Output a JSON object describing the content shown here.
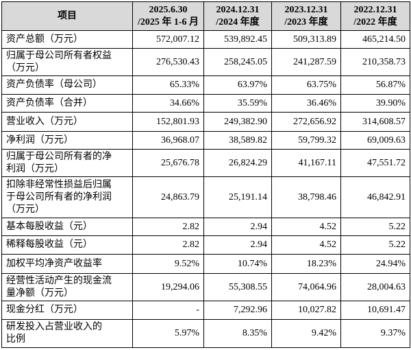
{
  "header": [
    [
      "项目"
    ],
    [
      "2025.6.30",
      "/2025 年 1-6 月"
    ],
    [
      "2024.12.31",
      "/2024 年度"
    ],
    [
      "2023.12.31",
      "/2023 年度"
    ],
    [
      "2022.12.31",
      "/2022 年度"
    ]
  ],
  "rows": [
    {
      "label": [
        "资产总额（万元）"
      ],
      "values": [
        "572,007.12",
        "539,892.45",
        "509,313.89",
        "465,214.50"
      ]
    },
    {
      "label": [
        "归属于母公司所有者权益",
        "（万元）"
      ],
      "values": [
        "276,530.43",
        "258,245.05",
        "241,287.59",
        "210,358.73"
      ]
    },
    {
      "label": [
        "资产负债率（母公司）"
      ],
      "values": [
        "65.33%",
        "63.97%",
        "63.75%",
        "56.87%"
      ]
    },
    {
      "label": [
        "资产负债率（合并）"
      ],
      "values": [
        "34.66%",
        "35.59%",
        "36.46%",
        "39.90%"
      ]
    },
    {
      "label": [
        "营业收入（万元）"
      ],
      "values": [
        "152,801.93",
        "249,382.90",
        "272,656.92",
        "314,608.57"
      ]
    },
    {
      "label": [
        "净利润（万元）"
      ],
      "values": [
        "36,968.07",
        "38,589.82",
        "59,799.32",
        "69,009.63"
      ]
    },
    {
      "label": [
        "归属于母公司所有者的净",
        "利润（万元）"
      ],
      "values": [
        "25,676.78",
        "26,824.29",
        "41,167.11",
        "47,551.72"
      ]
    },
    {
      "label": [
        "扣除非经常性损益后归属",
        "于母公司所有者的净利润",
        "（万元）"
      ],
      "values": [
        "24,863.79",
        "25,191.14",
        "38,798.46",
        "46,842.91"
      ]
    },
    {
      "label": [
        "基本每股收益（元）"
      ],
      "values": [
        "2.82",
        "2.94",
        "4.52",
        "5.22"
      ]
    },
    {
      "label": [
        "稀释每股收益（元）"
      ],
      "values": [
        "2.82",
        "2.94",
        "4.52",
        "5.22"
      ]
    },
    {
      "label": [
        "加权平均净资产收益率"
      ],
      "values": [
        "9.52%",
        "10.74%",
        "18.23%",
        "24.94%"
      ]
    },
    {
      "label": [
        "经营性活动产生的现金流",
        "量净额（万元）"
      ],
      "values": [
        "19,294.06",
        "55,308.55",
        "74,064.96",
        "28,004.63"
      ]
    },
    {
      "label": [
        "现金分红（万元）"
      ],
      "values": [
        "-",
        "7,292.96",
        "10,027.82",
        "10,691.47"
      ]
    },
    {
      "label": [
        "研发投入占营业收入的",
        "比例"
      ],
      "values": [
        "5.97%",
        "8.35%",
        "9.42%",
        "9.37%"
      ]
    }
  ]
}
